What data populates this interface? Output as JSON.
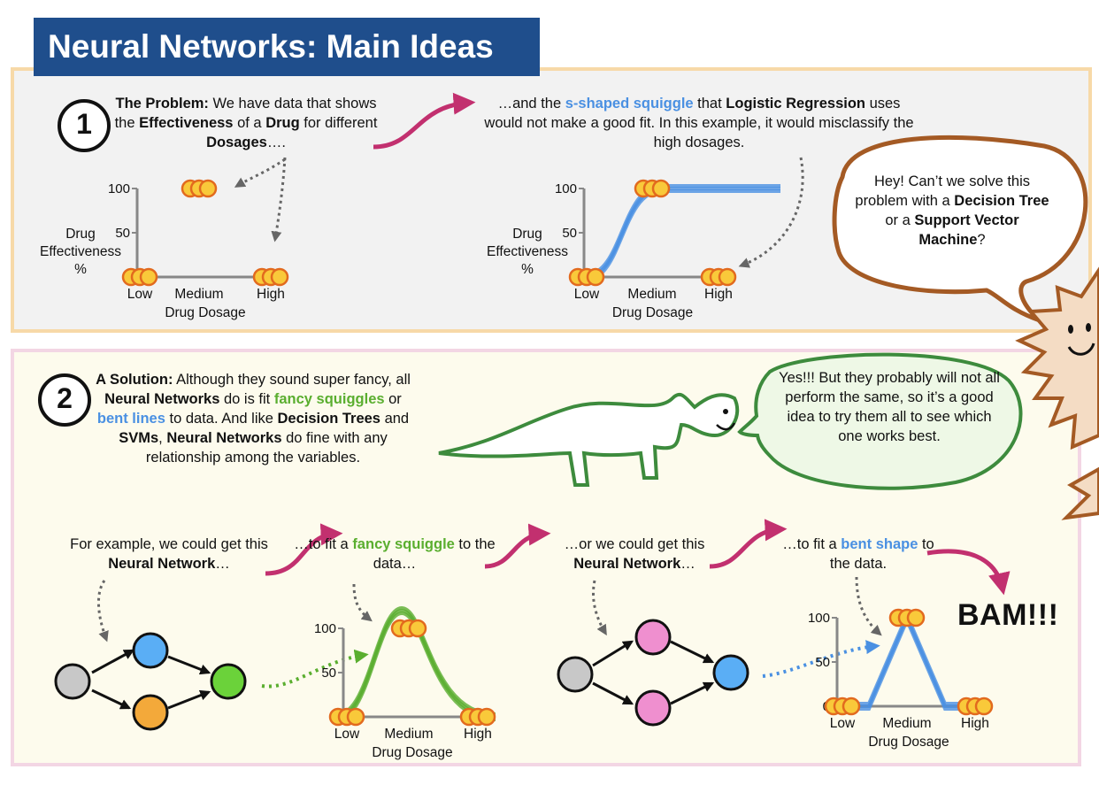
{
  "title": "Neural Networks: Main Ideas",
  "section1": {
    "number": "1",
    "problem_label": "The Problem:",
    "problem_t1": " We have data that shows the ",
    "problem_b1": "Effectiveness",
    "problem_t2": " of a ",
    "problem_b2": "Drug",
    "problem_t3": " for different ",
    "problem_b3": "Dosages",
    "problem_t4": "….",
    "squiggle_t1": "…and the ",
    "squiggle_b1": "s-shaped squiggle",
    "squiggle_t2": " that ",
    "squiggle_b2": "Logistic Regression",
    "squiggle_t3": " uses would not make a good fit. In this example, it would misclassify the high dosages.",
    "question_t1": "Hey! Can’t we solve this problem with a ",
    "question_b1": "Decision Tree",
    "question_t2": " or a ",
    "question_b2": "Support Vector Machine",
    "question_t3": "?"
  },
  "section2": {
    "number": "2",
    "solution_label": "A Solution:",
    "solution_t1": " Although they sound super fancy, all ",
    "solution_b1": "Neural Networks",
    "solution_t2": " do is fit ",
    "solution_g1": "fancy squiggles",
    "solution_t3": " or ",
    "solution_bl1": "bent lines",
    "solution_t4": " to data. And like ",
    "solution_b2": "Decision Trees",
    "solution_t5": " and ",
    "solution_b3": "SVMs",
    "solution_t6": ", ",
    "solution_b4": "Neural Networks",
    "solution_t7": " do fine with any relationship among the variables.",
    "answer": "Yes!!! But they probably will not all perform the same, so it’s a good idea to try them all to see which one works best.",
    "ex1_t1": "For example, we could get this ",
    "ex1_b1": "Neural Network",
    "ex1_t2": "…",
    "ex2_t1": "…to fit a ",
    "ex2_g1": "fancy squiggle",
    "ex2_t2": " to the data…",
    "ex3_t1": "…or we could get this ",
    "ex3_b1": "Neural Network",
    "ex3_t2": "…",
    "ex4_t1": "…to fit a ",
    "ex4_bl1": "bent shape",
    "ex4_t2": " to the data.",
    "bam": "BAM!!!"
  },
  "axis": {
    "ylabel_1": "Drug",
    "ylabel_2": "Effectiveness",
    "ylabel_3": "%",
    "xlabel": "Drug Dosage",
    "ticks_y": [
      "0",
      "50",
      "100"
    ],
    "ticks_x": [
      "Low",
      "Medium",
      "High"
    ]
  },
  "colors": {
    "title_bg": "#1f4e8c",
    "panel1_bg": "#f2f2f2",
    "panel1_border": "#f7d9a8",
    "panel2_bg": "#fdfbed",
    "panel2_border": "#f3d6e4",
    "magenta": "#c2306f",
    "blue": "#4a90e2",
    "green": "#5aae2f",
    "node_gray": "#c8c8c8",
    "node_blue": "#5aaef5",
    "node_orange": "#f3a93a",
    "node_green": "#6bd23a",
    "node_pink": "#ef8fcf",
    "dot_fill": "#f9c93a",
    "dot_stroke": "#e26a1e",
    "bubble_brown": "#a45a24",
    "dino_green": "#3d8b3d",
    "bubble_green_bg": "#eef8e6"
  },
  "chart_data": [
    {
      "type": "scatter",
      "x_categories": [
        "Low",
        "Medium",
        "High"
      ],
      "series": [
        {
          "points": [
            {
              "x": "Low",
              "y": 0
            },
            {
              "x": "Medium",
              "y": 100
            },
            {
              "x": "High",
              "y": 0
            }
          ]
        }
      ],
      "ylim": [
        0,
        100
      ],
      "ylabel": "Drug Effectiveness %",
      "xlabel": "Drug Dosage"
    },
    {
      "type": "line",
      "x_categories": [
        "Low",
        "Medium",
        "High"
      ],
      "series": [
        {
          "points": [
            {
              "x": "Low",
              "y": 0
            },
            {
              "x": "Medium",
              "y": 100
            },
            {
              "x": "High",
              "y": 0
            }
          ]
        }
      ],
      "fit": "s-shaped squiggle",
      "ylim": [
        0,
        100
      ],
      "ylabel": "Drug Effectiveness %",
      "xlabel": "Drug Dosage"
    },
    {
      "type": "line",
      "x_categories": [
        "Low",
        "Medium",
        "High"
      ],
      "series": [
        {
          "points": [
            {
              "x": "Low",
              "y": 0
            },
            {
              "x": "Medium",
              "y": 100
            },
            {
              "x": "High",
              "y": 0
            }
          ]
        }
      ],
      "fit": "fancy squiggle",
      "ylim": [
        0,
        100
      ],
      "xlabel": "Drug Dosage"
    },
    {
      "type": "line",
      "x_categories": [
        "Low",
        "Medium",
        "High"
      ],
      "series": [
        {
          "points": [
            {
              "x": "Low",
              "y": 0
            },
            {
              "x": "Medium",
              "y": 100
            },
            {
              "x": "High",
              "y": 0
            }
          ]
        }
      ],
      "fit": "bent shape",
      "ylim": [
        0,
        100
      ],
      "xlabel": "Drug Dosage"
    }
  ]
}
